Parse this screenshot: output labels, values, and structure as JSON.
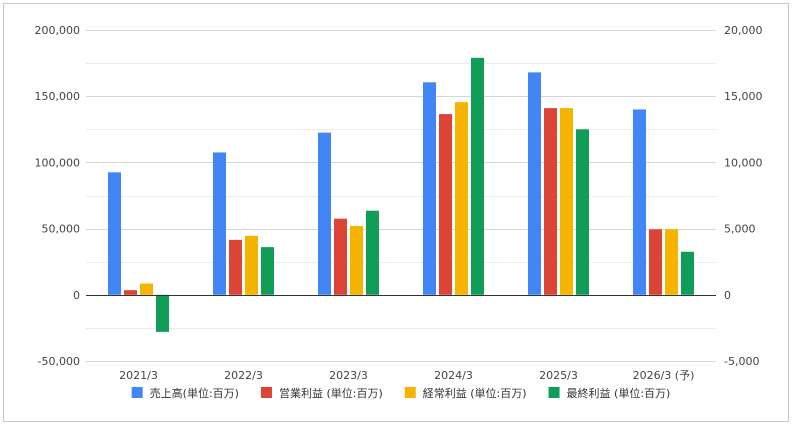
{
  "chart_data": {
    "type": "bar",
    "title": "",
    "categories": [
      "2021/3",
      "2022/3",
      "2023/3",
      "2024/3",
      "2025/3",
      "2026/3 (予)"
    ],
    "left_axis": {
      "ylim": [
        -50000,
        200000
      ],
      "ticks": [
        -50000,
        0,
        50000,
        100000,
        150000,
        200000
      ],
      "tick_labels": [
        "-50,000",
        "0",
        "50,000",
        "100,000",
        "150,000",
        "200,000"
      ]
    },
    "right_axis": {
      "ylim": [
        -5000,
        20000
      ],
      "ticks": [
        -5000,
        0,
        5000,
        10000,
        15000,
        20000
      ],
      "tick_labels": [
        "-5,000",
        "0",
        "5,000",
        "10,000",
        "15,000",
        "20,000"
      ]
    },
    "grid": true,
    "legend_position": "bottom",
    "series": [
      {
        "name": "売上高(単位:百万)",
        "axis": "left",
        "color": "#4285F4",
        "values": [
          92500,
          107500,
          122500,
          160500,
          168000,
          140000
        ]
      },
      {
        "name": "営業利益 (単位:百万)",
        "axis": "right",
        "color": "#DB4437",
        "values": [
          350,
          4150,
          5750,
          13650,
          14100,
          4950
        ]
      },
      {
        "name": "経常利益 (単位:百万)",
        "axis": "right",
        "color": "#F4B400",
        "values": [
          850,
          4450,
          5200,
          14550,
          14100,
          4950
        ]
      },
      {
        "name": "最終利益 (単位:百万)",
        "axis": "right",
        "color": "#0F9D58",
        "values": [
          -2800,
          3600,
          6350,
          17900,
          12500,
          3250
        ]
      }
    ]
  }
}
